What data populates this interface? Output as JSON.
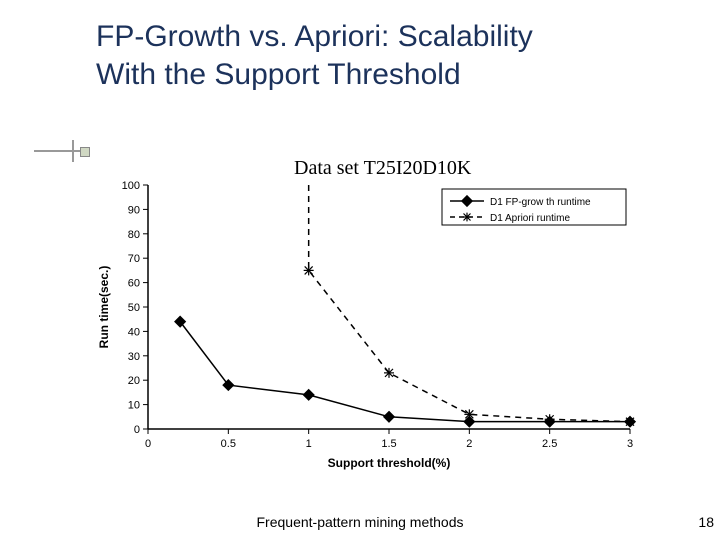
{
  "title_line1": "FP-Growth vs. Apriori: Scalability",
  "title_line2": "With the Support Threshold",
  "dataset_label": "Data set T25I20D10K",
  "footer_center": "Frequent-pattern mining methods",
  "footer_page": "18",
  "chart": {
    "type": "line",
    "background_color": "#ffffff",
    "axis_color": "#000000",
    "text_color": "#000000",
    "font_family": "Arial, sans-serif",
    "tick_fontsize": 11,
    "label_fontsize": 12,
    "xlabel": "Support threshold(%)",
    "ylabel": "Run time(sec.)",
    "xlim": [
      0,
      3
    ],
    "ylim": [
      0,
      100
    ],
    "xtick_step": 0.5,
    "ytick_step": 10,
    "legend": {
      "entries": [
        {
          "label": "D1 FP-grow th runtime",
          "marker": "diamond",
          "dash": "solid"
        },
        {
          "label": "D1 Apriori runtime",
          "marker": "star",
          "dash": "dashed"
        }
      ],
      "border_color": "#000000",
      "fontsize": 10,
      "position": "top-right"
    },
    "series": [
      {
        "name": "D1 FP-growth runtime",
        "color": "#000000",
        "line_width": 1.5,
        "dash": "solid",
        "marker": "diamond",
        "marker_size": 7,
        "x": [
          0.2,
          0.5,
          1.0,
          1.5,
          2.0,
          2.5,
          3.0
        ],
        "y": [
          44,
          18,
          14,
          5,
          3,
          3,
          3
        ]
      },
      {
        "name": "D1 Apriori runtime",
        "color": "#000000",
        "line_width": 1.5,
        "dash": "dashed",
        "marker": "star",
        "marker_size": 8,
        "x": [
          1.0,
          1.5,
          2.0,
          2.5,
          3.0
        ],
        "y": [
          65,
          23,
          6,
          4,
          3
        ],
        "leading_vertical_from_top": true
      }
    ]
  }
}
